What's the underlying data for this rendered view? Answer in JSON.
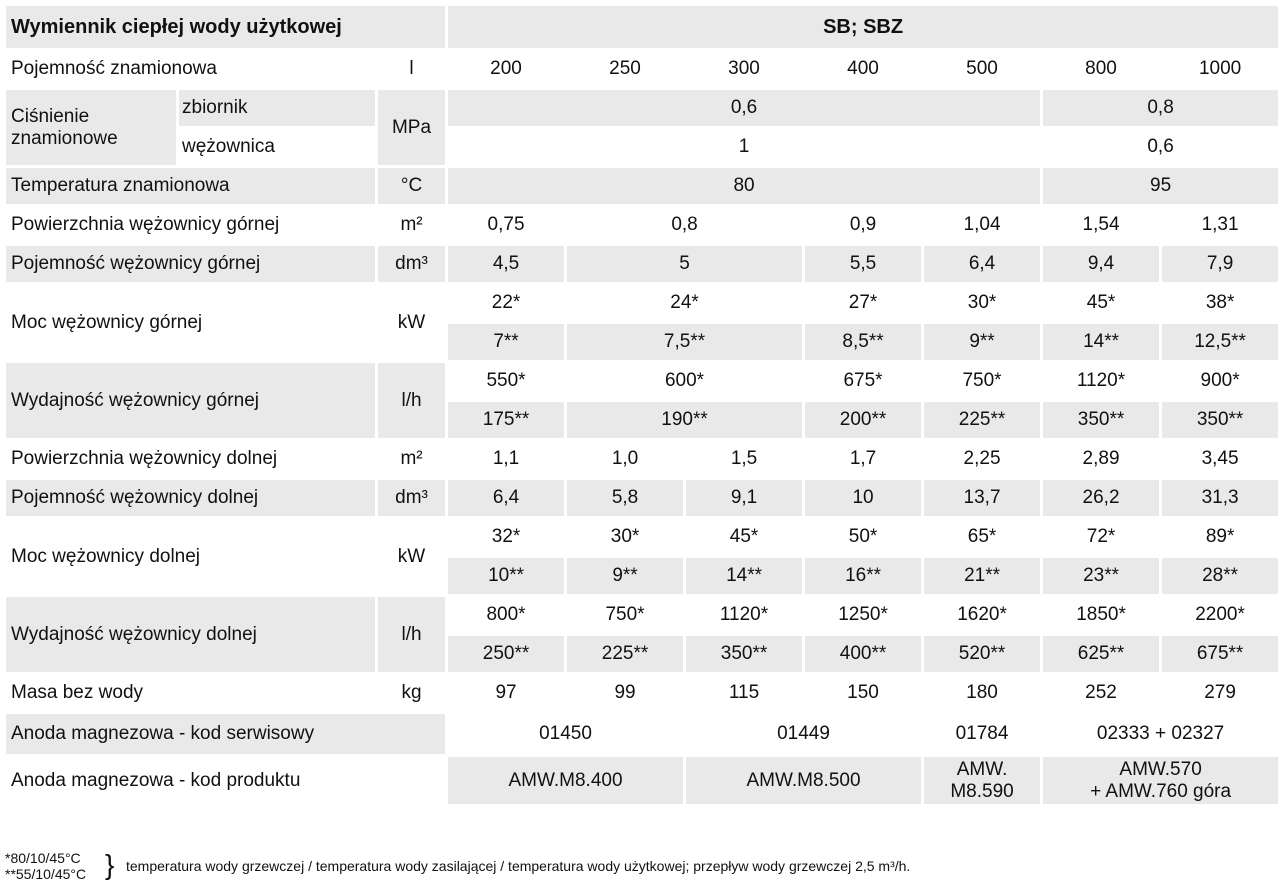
{
  "table": {
    "title": "Wymiennik ciepłej wody użytkowej",
    "model": "SB; SBZ",
    "rows": {
      "capacity": {
        "label": "Pojemność znamionowa",
        "unit": "l",
        "values": [
          "200",
          "250",
          "300",
          "400",
          "500",
          "800",
          "1000"
        ]
      },
      "pressure": {
        "label": "Ciśnienie znamionowe",
        "unit": "MPa",
        "tank": {
          "label": "zbiornik",
          "values": [
            "0,6",
            "0,8"
          ]
        },
        "coil": {
          "label": "wężownica",
          "values": [
            "1",
            "0,6"
          ]
        }
      },
      "temperature": {
        "label": "Temperatura znamionowa",
        "unit": "°C",
        "values": [
          "80",
          "95"
        ]
      },
      "upper_area": {
        "label": "Powierzchnia wężownicy górnej",
        "unit": "m²",
        "values": [
          "0,75",
          "0,8",
          "0,9",
          "1,04",
          "1,54",
          "1,31"
        ]
      },
      "upper_volume": {
        "label": "Pojemność wężownicy górnej",
        "unit": "dm³",
        "values": [
          "4,5",
          "5",
          "5,5",
          "6,4",
          "9,4",
          "7,9"
        ]
      },
      "upper_power": {
        "label": "Moc wężownicy górnej",
        "unit": "kW",
        "values_a": [
          "22*",
          "24*",
          "27*",
          "30*",
          "45*",
          "38*"
        ],
        "values_b": [
          "7**",
          "7,5**",
          "8,5**",
          "9**",
          "14**",
          "12,5**"
        ]
      },
      "upper_output": {
        "label": "Wydajność wężownicy górnej",
        "unit": "l/h",
        "values_a": [
          "550*",
          "600*",
          "675*",
          "750*",
          "1120*",
          "900*"
        ],
        "values_b": [
          "175**",
          "190**",
          "200**",
          "225**",
          "350**",
          "350**"
        ]
      },
      "lower_area": {
        "label": "Powierzchnia wężownicy dolnej",
        "unit": "m²",
        "values": [
          "1,1",
          "1,0",
          "1,5",
          "1,7",
          "2,25",
          "2,89",
          "3,45"
        ]
      },
      "lower_volume": {
        "label": "Pojemność wężownicy dolnej",
        "unit": "dm³",
        "values": [
          "6,4",
          "5,8",
          "9,1",
          "10",
          "13,7",
          "26,2",
          "31,3"
        ]
      },
      "lower_power": {
        "label": "Moc wężownicy dolnej",
        "unit": "kW",
        "values_a": [
          "32*",
          "30*",
          "45*",
          "50*",
          "65*",
          "72*",
          "89*"
        ],
        "values_b": [
          "10**",
          "9**",
          "14**",
          "16**",
          "21**",
          "23**",
          "28**"
        ]
      },
      "lower_output": {
        "label": "Wydajność wężownicy dolnej",
        "unit": "l/h",
        "values_a": [
          "800*",
          "750*",
          "1120*",
          "1250*",
          "1620*",
          "1850*",
          "2200*"
        ],
        "values_b": [
          "250**",
          "225**",
          "350**",
          "400**",
          "520**",
          "625**",
          "675**"
        ]
      },
      "mass": {
        "label": "Masa bez wody",
        "unit": "kg",
        "values": [
          "97",
          "99",
          "115",
          "150",
          "180",
          "252",
          "279"
        ]
      },
      "anode_service": {
        "label": "Anoda magnezowa - kod serwisowy",
        "values": [
          "01450",
          "01449",
          "01784",
          "02333 + 02327"
        ]
      },
      "anode_product": {
        "label": "Anoda magnezowa - kod produktu",
        "values": [
          "AMW.M8.400",
          "AMW.M8.500",
          "AMW.\nM8.590",
          "AMW.570\n+ AMW.760 góra"
        ]
      }
    }
  },
  "footnote": {
    "key_1": "*80/10/45°C",
    "key_2": "**55/10/45°C",
    "brace": "}",
    "text": "temperatura wody grzewczej / temperatura wody zasilającej / temperatura wody użytkowej; przepływ wody grzewczej 2,5 m³/h."
  }
}
